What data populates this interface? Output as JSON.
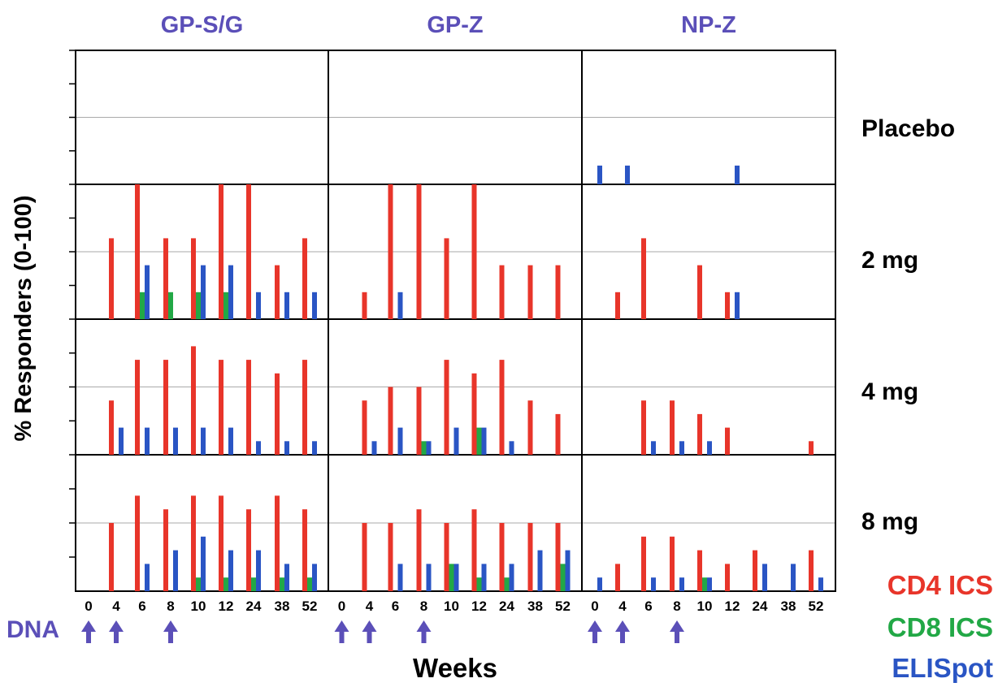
{
  "chart_data": {
    "type": "bar",
    "ylabel": "% Responders (0-100)",
    "xlabel": "Weeks",
    "dna_label": "DNA",
    "ylim": [
      0,
      100
    ],
    "week_labels": [
      "0",
      "4",
      "6",
      "8",
      "10",
      "12",
      "24",
      "38",
      "52"
    ],
    "dna_weeks": [
      "0",
      "4",
      "8"
    ],
    "columns": [
      "GP-S/G",
      "GP-Z",
      "NP-Z"
    ],
    "rows": [
      "Placebo",
      "2 mg",
      "4 mg",
      "8 mg"
    ],
    "legend": [
      {
        "name": "CD4 ICS",
        "color": "#e8352a"
      },
      {
        "name": "CD8 ICS",
        "color": "#22a846"
      },
      {
        "name": "ELISpot",
        "color": "#2a55c4"
      }
    ],
    "colors": {
      "title": "#5b4fb8",
      "arrow": "#5b4fb8",
      "grid": "#aaaaaa",
      "frame": "#000000"
    },
    "panels": [
      [
        {
          "cd4": [
            0,
            0,
            0,
            0,
            0,
            0,
            0,
            0,
            0
          ],
          "cd8": [
            0,
            0,
            0,
            0,
            0,
            0,
            0,
            0,
            0
          ],
          "elispot": [
            0,
            0,
            0,
            0,
            0,
            0,
            0,
            0,
            0
          ]
        },
        {
          "cd4": [
            0,
            0,
            0,
            0,
            0,
            0,
            0,
            0,
            0
          ],
          "cd8": [
            0,
            0,
            0,
            0,
            0,
            0,
            0,
            0,
            0
          ],
          "elispot": [
            0,
            0,
            0,
            0,
            0,
            0,
            0,
            0,
            0
          ]
        },
        {
          "cd4": [
            0,
            0,
            0,
            0,
            0,
            0,
            0,
            0,
            0
          ],
          "cd8": [
            0,
            0,
            0,
            0,
            0,
            0,
            0,
            0,
            0
          ],
          "elispot": [
            14,
            14,
            0,
            0,
            0,
            14,
            0,
            0,
            0
          ]
        }
      ],
      [
        {
          "cd4": [
            0,
            60,
            100,
            60,
            60,
            100,
            100,
            40,
            60
          ],
          "cd8": [
            0,
            0,
            20,
            20,
            20,
            20,
            0,
            0,
            0
          ],
          "elispot": [
            0,
            0,
            40,
            0,
            40,
            40,
            20,
            20,
            20
          ]
        },
        {
          "cd4": [
            0,
            20,
            100,
            100,
            60,
            100,
            40,
            40,
            40
          ],
          "cd8": [
            0,
            0,
            0,
            0,
            0,
            0,
            0,
            0,
            0
          ],
          "elispot": [
            0,
            0,
            20,
            0,
            0,
            0,
            0,
            0,
            0
          ]
        },
        {
          "cd4": [
            0,
            20,
            60,
            0,
            40,
            20,
            0,
            0,
            0
          ],
          "cd8": [
            0,
            0,
            0,
            0,
            0,
            0,
            0,
            0,
            0
          ],
          "elispot": [
            0,
            0,
            0,
            0,
            0,
            20,
            0,
            0,
            0
          ]
        }
      ],
      [
        {
          "cd4": [
            0,
            40,
            70,
            70,
            80,
            70,
            70,
            60,
            70
          ],
          "cd8": [
            0,
            0,
            0,
            0,
            0,
            0,
            0,
            0,
            0
          ],
          "elispot": [
            0,
            20,
            20,
            20,
            20,
            20,
            10,
            10,
            10
          ]
        },
        {
          "cd4": [
            0,
            40,
            50,
            50,
            70,
            60,
            70,
            40,
            30
          ],
          "cd8": [
            0,
            0,
            0,
            10,
            0,
            20,
            0,
            0,
            0
          ],
          "elispot": [
            0,
            10,
            20,
            10,
            20,
            20,
            10,
            0,
            0
          ]
        },
        {
          "cd4": [
            0,
            0,
            40,
            40,
            30,
            20,
            0,
            0,
            10
          ],
          "cd8": [
            0,
            0,
            0,
            0,
            0,
            0,
            0,
            0,
            0
          ],
          "elispot": [
            0,
            0,
            10,
            10,
            10,
            0,
            0,
            0,
            0
          ]
        }
      ],
      [
        {
          "cd4": [
            0,
            50,
            70,
            60,
            70,
            70,
            60,
            70,
            60
          ],
          "cd8": [
            0,
            0,
            0,
            0,
            10,
            10,
            10,
            10,
            10
          ],
          "elispot": [
            0,
            0,
            20,
            30,
            40,
            30,
            30,
            20,
            20
          ]
        },
        {
          "cd4": [
            0,
            50,
            50,
            60,
            50,
            60,
            50,
            50,
            50
          ],
          "cd8": [
            0,
            0,
            0,
            0,
            20,
            10,
            10,
            0,
            20
          ],
          "elispot": [
            0,
            0,
            20,
            20,
            20,
            20,
            20,
            30,
            30
          ]
        },
        {
          "cd4": [
            0,
            20,
            40,
            40,
            30,
            20,
            30,
            0,
            30
          ],
          "cd8": [
            0,
            0,
            0,
            0,
            10,
            0,
            0,
            0,
            0
          ],
          "elispot": [
            10,
            0,
            10,
            10,
            10,
            0,
            20,
            20,
            10
          ]
        }
      ]
    ]
  }
}
